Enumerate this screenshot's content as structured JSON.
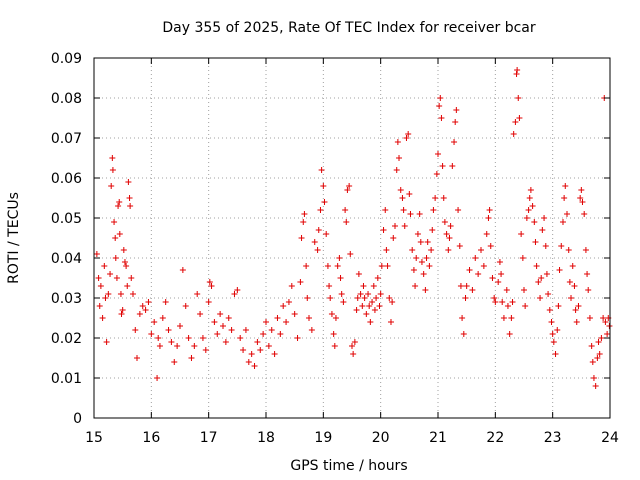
{
  "chart_data": {
    "type": "scatter",
    "title": "Day 355 of 2025, Rate Of TEC Index for receiver bcar",
    "xlabel": "GPS time / hours",
    "ylabel": "ROTI / TECUs",
    "xlim": [
      15,
      24
    ],
    "ylim": [
      0,
      0.09
    ],
    "x_ticks": [
      "15",
      "16",
      "17",
      "18",
      "19",
      "20",
      "21",
      "22",
      "23",
      "24"
    ],
    "y_ticks": [
      "0",
      "0.01",
      "0.02",
      "0.03",
      "0.04",
      "0.05",
      "0.06",
      "0.07",
      "0.08",
      "0.09"
    ],
    "grid": true,
    "marker": "plus",
    "marker_color": "#e00000",
    "series": [
      {
        "points": [
          [
            15.05,
            0.041
          ],
          [
            15.08,
            0.035
          ],
          [
            15.1,
            0.028
          ],
          [
            15.12,
            0.033
          ],
          [
            15.15,
            0.025
          ],
          [
            15.18,
            0.038
          ],
          [
            15.2,
            0.03
          ],
          [
            15.22,
            0.019
          ],
          [
            15.25,
            0.031
          ],
          [
            15.28,
            0.036
          ],
          [
            15.3,
            0.058
          ],
          [
            15.32,
            0.065
          ],
          [
            15.33,
            0.062
          ],
          [
            15.35,
            0.049
          ],
          [
            15.37,
            0.045
          ],
          [
            15.38,
            0.04
          ],
          [
            15.4,
            0.035
          ],
          [
            15.42,
            0.053
          ],
          [
            15.44,
            0.054
          ],
          [
            15.45,
            0.046
          ],
          [
            15.47,
            0.031
          ],
          [
            15.48,
            0.026
          ],
          [
            15.5,
            0.027
          ],
          [
            15.52,
            0.042
          ],
          [
            15.54,
            0.039
          ],
          [
            15.56,
            0.038
          ],
          [
            15.58,
            0.033
          ],
          [
            15.6,
            0.059
          ],
          [
            15.62,
            0.055
          ],
          [
            15.63,
            0.053
          ],
          [
            15.65,
            0.035
          ],
          [
            15.68,
            0.031
          ],
          [
            15.72,
            0.022
          ],
          [
            15.75,
            0.015
          ],
          [
            15.8,
            0.026
          ],
          [
            15.85,
            0.028
          ],
          [
            15.9,
            0.027
          ],
          [
            15.95,
            0.029
          ],
          [
            16.0,
            0.021
          ],
          [
            16.05,
            0.024
          ],
          [
            16.1,
            0.01
          ],
          [
            16.12,
            0.02
          ],
          [
            16.15,
            0.018
          ],
          [
            16.2,
            0.025
          ],
          [
            16.25,
            0.029
          ],
          [
            16.3,
            0.022
          ],
          [
            16.35,
            0.019
          ],
          [
            16.4,
            0.014
          ],
          [
            16.45,
            0.018
          ],
          [
            16.5,
            0.023
          ],
          [
            16.55,
            0.037
          ],
          [
            16.6,
            0.028
          ],
          [
            16.65,
            0.02
          ],
          [
            16.7,
            0.015
          ],
          [
            16.75,
            0.018
          ],
          [
            16.8,
            0.031
          ],
          [
            16.85,
            0.026
          ],
          [
            16.9,
            0.02
          ],
          [
            16.95,
            0.017
          ],
          [
            17.0,
            0.029
          ],
          [
            17.02,
            0.034
          ],
          [
            17.05,
            0.033
          ],
          [
            17.1,
            0.024
          ],
          [
            17.15,
            0.021
          ],
          [
            17.2,
            0.026
          ],
          [
            17.25,
            0.023
          ],
          [
            17.3,
            0.019
          ],
          [
            17.35,
            0.025
          ],
          [
            17.4,
            0.022
          ],
          [
            17.45,
            0.031
          ],
          [
            17.5,
            0.032
          ],
          [
            17.55,
            0.02
          ],
          [
            17.6,
            0.017
          ],
          [
            17.65,
            0.022
          ],
          [
            17.7,
            0.014
          ],
          [
            17.75,
            0.016
          ],
          [
            17.8,
            0.013
          ],
          [
            17.85,
            0.019
          ],
          [
            17.9,
            0.017
          ],
          [
            17.95,
            0.021
          ],
          [
            18.0,
            0.024
          ],
          [
            18.05,
            0.018
          ],
          [
            18.1,
            0.022
          ],
          [
            18.15,
            0.016
          ],
          [
            18.2,
            0.025
          ],
          [
            18.25,
            0.021
          ],
          [
            18.3,
            0.028
          ],
          [
            18.35,
            0.024
          ],
          [
            18.4,
            0.029
          ],
          [
            18.45,
            0.033
          ],
          [
            18.5,
            0.026
          ],
          [
            18.55,
            0.02
          ],
          [
            18.6,
            0.034
          ],
          [
            18.62,
            0.045
          ],
          [
            18.65,
            0.049
          ],
          [
            18.67,
            0.051
          ],
          [
            18.7,
            0.038
          ],
          [
            18.72,
            0.03
          ],
          [
            18.75,
            0.025
          ],
          [
            18.8,
            0.022
          ],
          [
            18.85,
            0.044
          ],
          [
            18.9,
            0.042
          ],
          [
            18.92,
            0.047
          ],
          [
            18.95,
            0.052
          ],
          [
            18.97,
            0.062
          ],
          [
            19.0,
            0.058
          ],
          [
            19.02,
            0.054
          ],
          [
            19.05,
            0.046
          ],
          [
            19.08,
            0.038
          ],
          [
            19.1,
            0.033
          ],
          [
            19.12,
            0.03
          ],
          [
            19.15,
            0.026
          ],
          [
            19.18,
            0.021
          ],
          [
            19.2,
            0.018
          ],
          [
            19.22,
            0.025
          ],
          [
            19.25,
            0.038
          ],
          [
            19.28,
            0.04
          ],
          [
            19.3,
            0.035
          ],
          [
            19.32,
            0.031
          ],
          [
            19.35,
            0.029
          ],
          [
            19.38,
            0.052
          ],
          [
            19.4,
            0.049
          ],
          [
            19.42,
            0.057
          ],
          [
            19.45,
            0.058
          ],
          [
            19.47,
            0.041
          ],
          [
            19.5,
            0.018
          ],
          [
            19.52,
            0.016
          ],
          [
            19.55,
            0.019
          ],
          [
            19.58,
            0.027
          ],
          [
            19.6,
            0.03
          ],
          [
            19.62,
            0.036
          ],
          [
            19.65,
            0.031
          ],
          [
            19.68,
            0.028
          ],
          [
            19.7,
            0.033
          ],
          [
            19.72,
            0.03
          ],
          [
            19.75,
            0.026
          ],
          [
            19.78,
            0.031
          ],
          [
            19.8,
            0.028
          ],
          [
            19.82,
            0.024
          ],
          [
            19.85,
            0.029
          ],
          [
            19.88,
            0.033
          ],
          [
            19.9,
            0.027
          ],
          [
            19.92,
            0.03
          ],
          [
            19.95,
            0.035
          ],
          [
            19.98,
            0.028
          ],
          [
            20.0,
            0.031
          ],
          [
            20.02,
            0.038
          ],
          [
            20.05,
            0.047
          ],
          [
            20.08,
            0.052
          ],
          [
            20.1,
            0.042
          ],
          [
            20.12,
            0.038
          ],
          [
            20.15,
            0.03
          ],
          [
            20.18,
            0.024
          ],
          [
            20.2,
            0.029
          ],
          [
            20.22,
            0.045
          ],
          [
            20.25,
            0.048
          ],
          [
            20.28,
            0.062
          ],
          [
            20.3,
            0.069
          ],
          [
            20.32,
            0.065
          ],
          [
            20.35,
            0.057
          ],
          [
            20.38,
            0.055
          ],
          [
            20.4,
            0.052
          ],
          [
            20.42,
            0.048
          ],
          [
            20.45,
            0.07
          ],
          [
            20.48,
            0.071
          ],
          [
            20.5,
            0.056
          ],
          [
            20.52,
            0.051
          ],
          [
            20.55,
            0.042
          ],
          [
            20.58,
            0.037
          ],
          [
            20.6,
            0.033
          ],
          [
            20.62,
            0.04
          ],
          [
            20.65,
            0.046
          ],
          [
            20.68,
            0.051
          ],
          [
            20.7,
            0.044
          ],
          [
            20.72,
            0.039
          ],
          [
            20.75,
            0.036
          ],
          [
            20.78,
            0.032
          ],
          [
            20.8,
            0.04
          ],
          [
            20.82,
            0.044
          ],
          [
            20.85,
            0.038
          ],
          [
            20.88,
            0.042
          ],
          [
            20.9,
            0.047
          ],
          [
            20.92,
            0.052
          ],
          [
            20.95,
            0.055
          ],
          [
            20.98,
            0.061
          ],
          [
            21.0,
            0.066
          ],
          [
            21.02,
            0.078
          ],
          [
            21.04,
            0.08
          ],
          [
            21.06,
            0.075
          ],
          [
            21.08,
            0.063
          ],
          [
            21.1,
            0.055
          ],
          [
            21.12,
            0.049
          ],
          [
            21.15,
            0.046
          ],
          [
            21.18,
            0.042
          ],
          [
            21.2,
            0.045
          ],
          [
            21.22,
            0.048
          ],
          [
            21.25,
            0.063
          ],
          [
            21.28,
            0.069
          ],
          [
            21.3,
            0.074
          ],
          [
            21.32,
            0.077
          ],
          [
            21.35,
            0.052
          ],
          [
            21.38,
            0.043
          ],
          [
            21.4,
            0.033
          ],
          [
            21.42,
            0.025
          ],
          [
            21.45,
            0.021
          ],
          [
            21.48,
            0.03
          ],
          [
            21.5,
            0.033
          ],
          [
            21.55,
            0.037
          ],
          [
            21.6,
            0.032
          ],
          [
            21.65,
            0.04
          ],
          [
            21.7,
            0.036
          ],
          [
            21.75,
            0.042
          ],
          [
            21.8,
            0.038
          ],
          [
            21.85,
            0.046
          ],
          [
            21.88,
            0.05
          ],
          [
            21.9,
            0.052
          ],
          [
            21.92,
            0.043
          ],
          [
            21.95,
            0.035
          ],
          [
            21.98,
            0.03
          ],
          [
            22.0,
            0.029
          ],
          [
            22.05,
            0.034
          ],
          [
            22.08,
            0.039
          ],
          [
            22.1,
            0.036
          ],
          [
            22.12,
            0.029
          ],
          [
            22.15,
            0.025
          ],
          [
            22.2,
            0.032
          ],
          [
            22.22,
            0.028
          ],
          [
            22.25,
            0.021
          ],
          [
            22.28,
            0.025
          ],
          [
            22.3,
            0.029
          ],
          [
            22.32,
            0.071
          ],
          [
            22.35,
            0.074
          ],
          [
            22.37,
            0.086
          ],
          [
            22.38,
            0.087
          ],
          [
            22.4,
            0.08
          ],
          [
            22.42,
            0.075
          ],
          [
            22.45,
            0.046
          ],
          [
            22.48,
            0.04
          ],
          [
            22.5,
            0.032
          ],
          [
            22.52,
            0.028
          ],
          [
            22.55,
            0.05
          ],
          [
            22.58,
            0.052
          ],
          [
            22.6,
            0.055
          ],
          [
            22.62,
            0.057
          ],
          [
            22.65,
            0.053
          ],
          [
            22.68,
            0.049
          ],
          [
            22.7,
            0.044
          ],
          [
            22.72,
            0.038
          ],
          [
            22.75,
            0.034
          ],
          [
            22.78,
            0.03
          ],
          [
            22.8,
            0.035
          ],
          [
            22.82,
            0.047
          ],
          [
            22.85,
            0.05
          ],
          [
            22.88,
            0.043
          ],
          [
            22.9,
            0.036
          ],
          [
            22.92,
            0.031
          ],
          [
            22.95,
            0.027
          ],
          [
            22.98,
            0.024
          ],
          [
            23.0,
            0.021
          ],
          [
            23.02,
            0.019
          ],
          [
            23.05,
            0.016
          ],
          [
            23.08,
            0.022
          ],
          [
            23.1,
            0.028
          ],
          [
            23.12,
            0.037
          ],
          [
            23.15,
            0.043
          ],
          [
            23.18,
            0.049
          ],
          [
            23.2,
            0.055
          ],
          [
            23.22,
            0.058
          ],
          [
            23.25,
            0.051
          ],
          [
            23.28,
            0.042
          ],
          [
            23.3,
            0.034
          ],
          [
            23.32,
            0.03
          ],
          [
            23.35,
            0.038
          ],
          [
            23.38,
            0.033
          ],
          [
            23.4,
            0.027
          ],
          [
            23.42,
            0.024
          ],
          [
            23.45,
            0.028
          ],
          [
            23.48,
            0.055
          ],
          [
            23.5,
            0.057
          ],
          [
            23.52,
            0.054
          ],
          [
            23.55,
            0.051
          ],
          [
            23.58,
            0.042
          ],
          [
            23.6,
            0.036
          ],
          [
            23.62,
            0.032
          ],
          [
            23.65,
            0.025
          ],
          [
            23.68,
            0.018
          ],
          [
            23.7,
            0.014
          ],
          [
            23.72,
            0.01
          ],
          [
            23.75,
            0.008
          ],
          [
            23.78,
            0.015
          ],
          [
            23.8,
            0.019
          ],
          [
            23.82,
            0.016
          ],
          [
            23.85,
            0.02
          ],
          [
            23.88,
            0.025
          ],
          [
            23.9,
            0.08
          ],
          [
            23.92,
            0.024
          ],
          [
            23.95,
            0.021
          ],
          [
            23.97,
            0.025
          ],
          [
            23.99,
            0.023
          ]
        ]
      }
    ]
  }
}
